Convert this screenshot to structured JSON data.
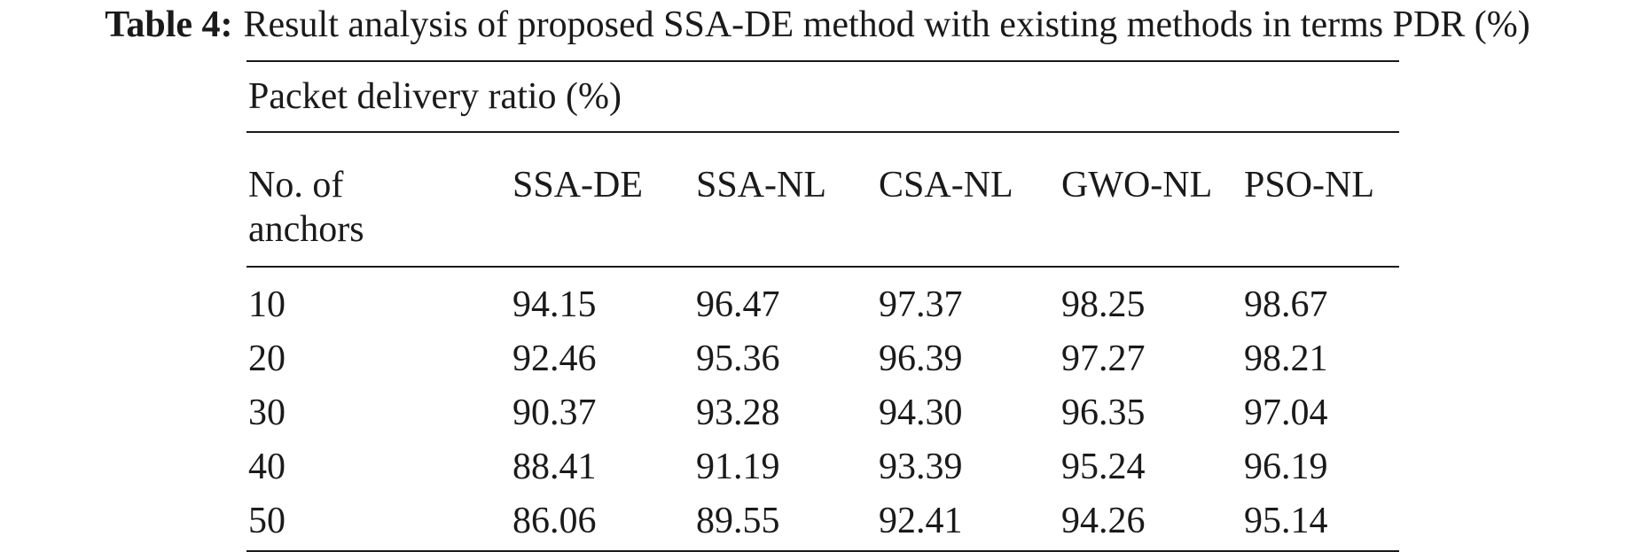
{
  "caption": {
    "label": "Table 4:",
    "text": "Result analysis of proposed SSA-DE method with existing methods in terms PDR (%)"
  },
  "table": {
    "group_header": "Packet delivery ratio (%)",
    "columns": [
      "No. of anchors",
      "SSA-DE",
      "SSA-NL",
      "CSA-NL",
      "GWO-NL",
      "PSO-NL"
    ],
    "rows": [
      [
        "10",
        "94.15",
        "96.47",
        "97.37",
        "98.25",
        "98.67"
      ],
      [
        "20",
        "92.46",
        "95.36",
        "96.39",
        "97.27",
        "98.21"
      ],
      [
        "30",
        "90.37",
        "93.28",
        "94.30",
        "96.35",
        "97.04"
      ],
      [
        "40",
        "88.41",
        "91.19",
        "93.39",
        "95.24",
        "96.19"
      ],
      [
        "50",
        "86.06",
        "89.55",
        "92.41",
        "94.26",
        "95.14"
      ]
    ]
  },
  "chart_data": {
    "type": "table",
    "title": "Result analysis of proposed SSA-DE method with existing methods in terms PDR (%)",
    "columns": [
      "No. of anchors",
      "SSA-DE",
      "SSA-NL",
      "CSA-NL",
      "GWO-NL",
      "PSO-NL"
    ],
    "x": [
      10,
      20,
      30,
      40,
      50
    ],
    "series": [
      {
        "name": "SSA-DE",
        "values": [
          94.15,
          92.46,
          90.37,
          88.41,
          86.06
        ]
      },
      {
        "name": "SSA-NL",
        "values": [
          96.47,
          95.36,
          93.28,
          91.19,
          89.55
        ]
      },
      {
        "name": "CSA-NL",
        "values": [
          97.37,
          96.39,
          94.3,
          93.39,
          92.41
        ]
      },
      {
        "name": "GWO-NL",
        "values": [
          98.25,
          97.27,
          96.35,
          95.24,
          94.26
        ]
      },
      {
        "name": "PSO-NL",
        "values": [
          98.67,
          98.21,
          97.04,
          96.19,
          95.14
        ]
      }
    ]
  }
}
